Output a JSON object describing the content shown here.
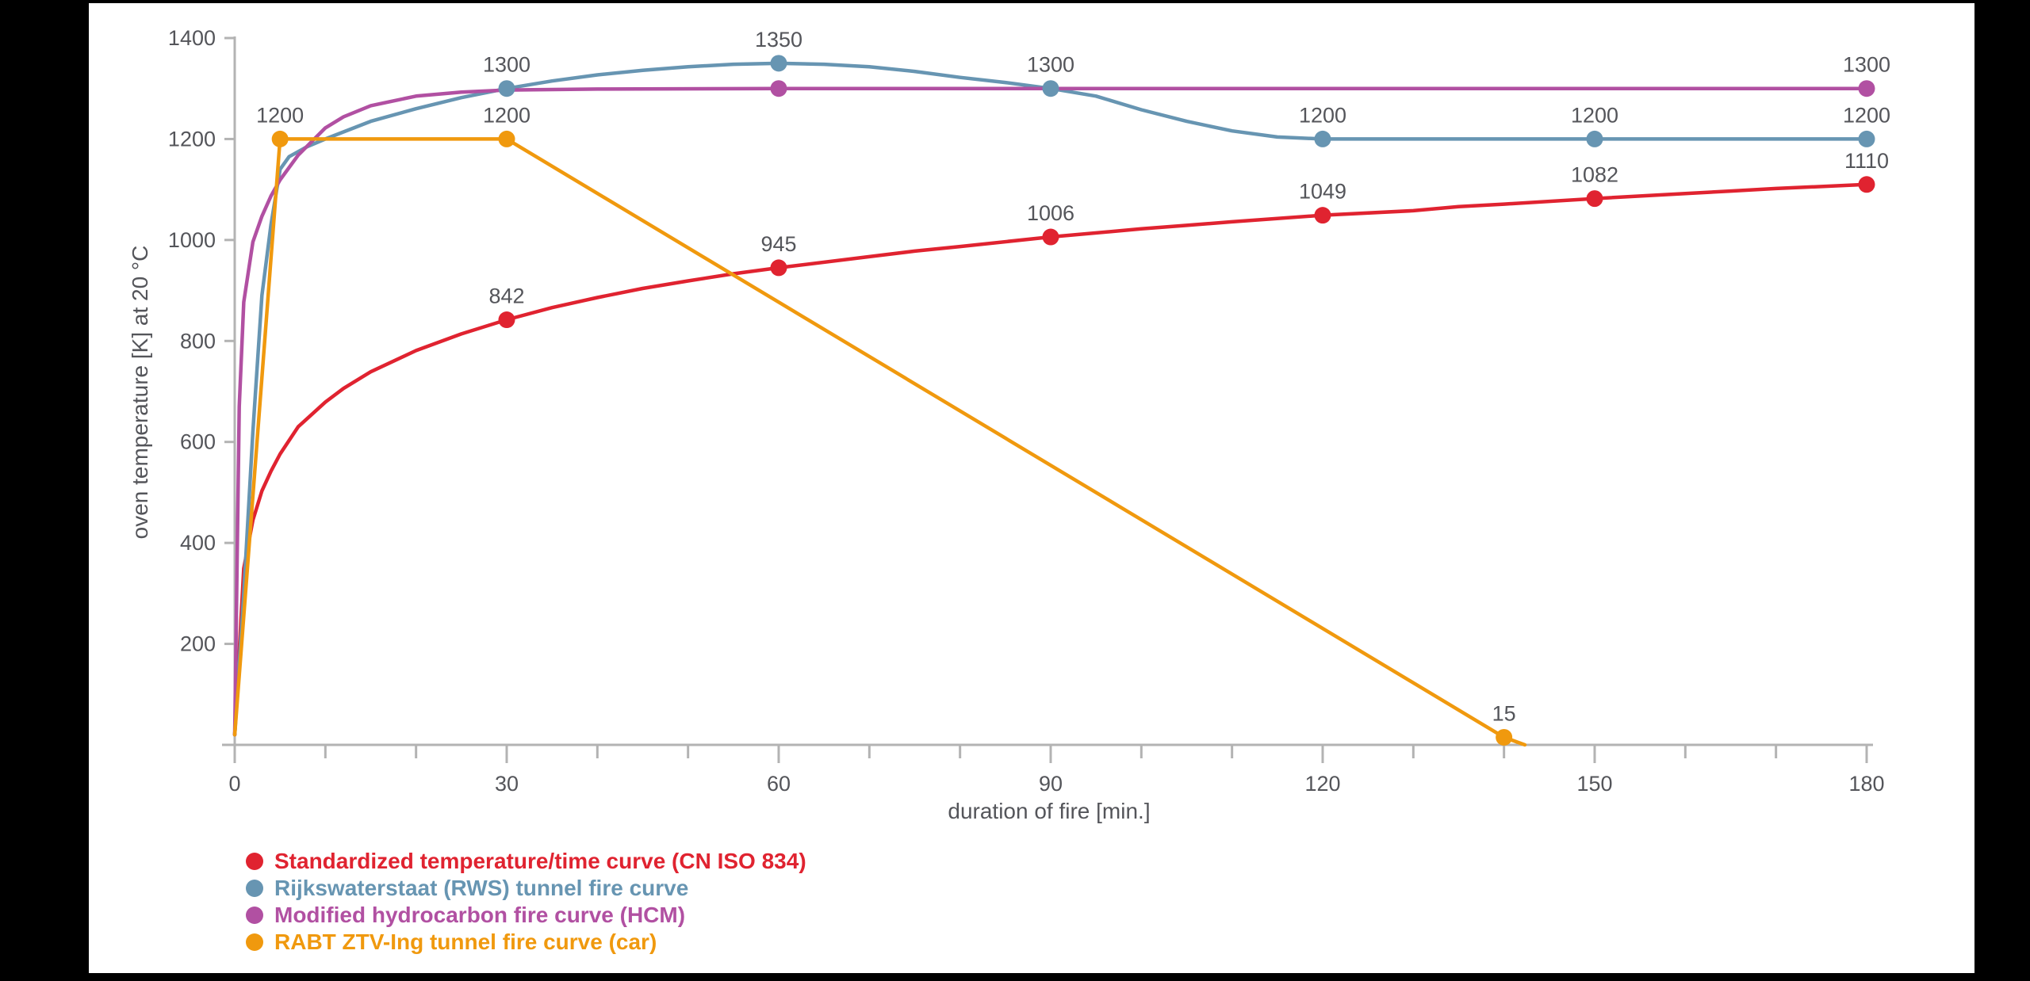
{
  "chart_data": {
    "type": "line",
    "title": "",
    "xlabel": "duration of fire [min.]",
    "ylabel": "oven temperature [K] at 20 °C",
    "xlim": [
      0,
      180
    ],
    "ylim": [
      0,
      1400
    ],
    "x_ticks_major": [
      0,
      30,
      60,
      90,
      120,
      150,
      180
    ],
    "x_tick_minor_step": 10,
    "y_ticks": [
      200,
      400,
      600,
      800,
      1000,
      1200,
      1400
    ],
    "grid": false,
    "legend_position": "bottom-left",
    "axis_color": "#b3b3b3",
    "text_color": "#54555a",
    "background_color": "#ffffff",
    "frame_color": "#000000",
    "series": [
      {
        "name": "Standardized temperature/time curve (CN ISO 834)",
        "color": "#e02330",
        "curve_points": [
          [
            0,
            20
          ],
          [
            1,
            349
          ],
          [
            2,
            445
          ],
          [
            3,
            503
          ],
          [
            4,
            542
          ],
          [
            5,
            576
          ],
          [
            7,
            630
          ],
          [
            10,
            679
          ],
          [
            12,
            706
          ],
          [
            15,
            739
          ],
          [
            20,
            781
          ],
          [
            25,
            814
          ],
          [
            30,
            842
          ],
          [
            35,
            866
          ],
          [
            40,
            886
          ],
          [
            45,
            904
          ],
          [
            50,
            919
          ],
          [
            55,
            933
          ],
          [
            60,
            945
          ],
          [
            70,
            967
          ],
          [
            75,
            978
          ],
          [
            80,
            987
          ],
          [
            90,
            1006
          ],
          [
            100,
            1022
          ],
          [
            105,
            1029
          ],
          [
            110,
            1036
          ],
          [
            120,
            1049
          ],
          [
            130,
            1058
          ],
          [
            135,
            1066
          ],
          [
            140,
            1071
          ],
          [
            150,
            1082
          ],
          [
            160,
            1092
          ],
          [
            165,
            1097
          ],
          [
            170,
            1102
          ],
          [
            180,
            1110
          ]
        ],
        "markers": [
          [
            30,
            842,
            "842"
          ],
          [
            60,
            945,
            "945"
          ],
          [
            90,
            1006,
            "1006"
          ],
          [
            120,
            1049,
            "1049"
          ],
          [
            150,
            1082,
            "1082"
          ],
          [
            180,
            1110,
            "1110"
          ]
        ]
      },
      {
        "name": "Rijkswaterstaat (RWS) tunnel fire curve",
        "color": "#6795b2",
        "curve_points": [
          [
            0,
            20
          ],
          [
            1,
            300
          ],
          [
            2,
            620
          ],
          [
            3,
            890
          ],
          [
            4,
            1030
          ],
          [
            5,
            1140
          ],
          [
            6,
            1165
          ],
          [
            8,
            1185
          ],
          [
            10,
            1200
          ],
          [
            15,
            1235
          ],
          [
            20,
            1260
          ],
          [
            25,
            1282
          ],
          [
            30,
            1300
          ],
          [
            35,
            1315
          ],
          [
            40,
            1327
          ],
          [
            45,
            1336
          ],
          [
            50,
            1343
          ],
          [
            55,
            1348
          ],
          [
            60,
            1350
          ],
          [
            65,
            1348
          ],
          [
            70,
            1343
          ],
          [
            75,
            1334
          ],
          [
            80,
            1322
          ],
          [
            85,
            1312
          ],
          [
            90,
            1300
          ],
          [
            95,
            1285
          ],
          [
            100,
            1258
          ],
          [
            105,
            1235
          ],
          [
            110,
            1216
          ],
          [
            115,
            1204
          ],
          [
            120,
            1200
          ],
          [
            130,
            1200
          ],
          [
            150,
            1200
          ],
          [
            180,
            1200
          ]
        ],
        "markers": [
          [
            30,
            1300,
            "1300"
          ],
          [
            60,
            1350,
            "1350"
          ],
          [
            90,
            1300,
            "1300"
          ],
          [
            120,
            1200,
            "1200"
          ],
          [
            150,
            1200,
            "1200"
          ],
          [
            180,
            1200,
            "1200"
          ]
        ]
      },
      {
        "name": "Modified hydrocarbon fire curve (HCM)",
        "color": "#b150a2",
        "curve_points": [
          [
            0,
            20
          ],
          [
            0.5,
            670
          ],
          [
            1,
            877
          ],
          [
            2,
            996
          ],
          [
            3,
            1047
          ],
          [
            4,
            1087
          ],
          [
            5,
            1119
          ],
          [
            7,
            1168
          ],
          [
            10,
            1222
          ],
          [
            12,
            1244
          ],
          [
            15,
            1266
          ],
          [
            20,
            1285
          ],
          [
            25,
            1293
          ],
          [
            30,
            1297
          ],
          [
            40,
            1299
          ],
          [
            60,
            1300
          ],
          [
            90,
            1300
          ],
          [
            120,
            1300
          ],
          [
            150,
            1300
          ],
          [
            180,
            1300
          ]
        ],
        "markers": [
          [
            60,
            1300,
            ""
          ],
          [
            180,
            1300,
            "1300"
          ]
        ]
      },
      {
        "name": "RABT ZTV-Ing tunnel fire curve (car)",
        "color": "#f0990e",
        "curve_points": [
          [
            0,
            20
          ],
          [
            5,
            1200
          ],
          [
            30,
            1200
          ],
          [
            140,
            15
          ],
          [
            142.3,
            0
          ]
        ],
        "markers": [
          [
            5,
            1200,
            "1200"
          ],
          [
            30,
            1200,
            "1200"
          ],
          [
            140,
            15,
            "15"
          ]
        ]
      }
    ]
  }
}
